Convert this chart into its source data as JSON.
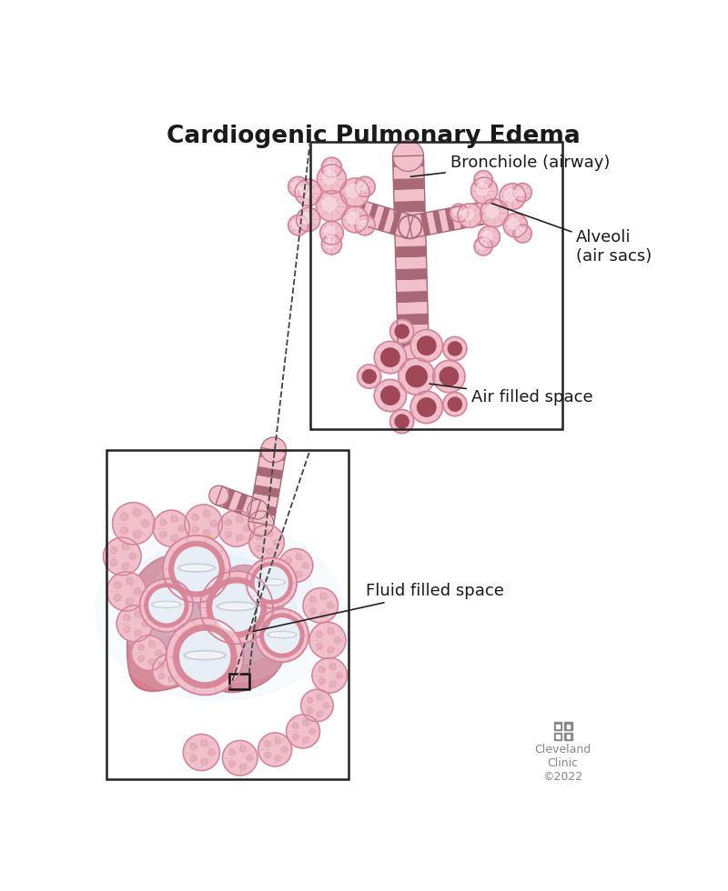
{
  "title": "Cardiogenic Pulmonary Edema",
  "title_fontsize": 19,
  "title_fontweight": "bold",
  "background_color": "#ffffff",
  "label_bronchiole": "Bronchiole (airway)",
  "label_alveoli": "Alveoli\n(air sacs)",
  "label_air_filled": "Air filled space",
  "label_fluid_filled": "Fluid filled space",
  "label_cleveland": "Cleveland\nClinic\n©2022",
  "pink_light": "#f2c0cb",
  "pink_medium": "#d4849a",
  "pink_dark": "#b06070",
  "pink_very_light": "#fce8ef",
  "pink_lung_fill": "#d98090",
  "pink_lung_edge": "#c06878",
  "pink_alveoli_wall": "#e09aaa",
  "pink_alveoli_fill": "#f0c0cc",
  "pink_alveoli_light": "#fce8f0",
  "brown_stripe": "#a86878",
  "blue_fluid_glow": "#c8dff0",
  "blue_fluid_center": "#9cbcd8",
  "fluid_white": "#e8eef5",
  "fluid_gray": "#c0ccd8",
  "fluid_surface": "#d0dce8",
  "air_dark": "#a04858",
  "air_medium": "#b86878",
  "dark_text": "#1a1a1a",
  "box_color": "#222222",
  "dashed_color": "#444444",
  "trachea_ring": "#c8c0d8",
  "trachea_fill": "#e8e4f0",
  "trachea_dark": "#a098b8",
  "vessel_color": "#c07888",
  "annot_arrow": "#222222",
  "logo_gray": "#888888"
}
